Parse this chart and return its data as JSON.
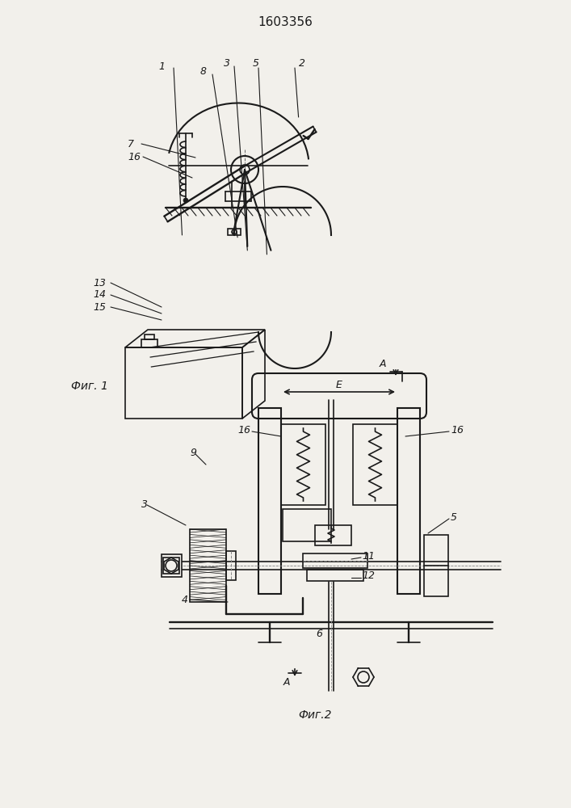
{
  "title": "1603356",
  "title_fontsize": 11,
  "fig1_label": "Фиг. 1",
  "fig2_label": "Фиг.2",
  "bg_color": "#f2f0eb",
  "line_color": "#1a1a1a",
  "lw": 1.2
}
